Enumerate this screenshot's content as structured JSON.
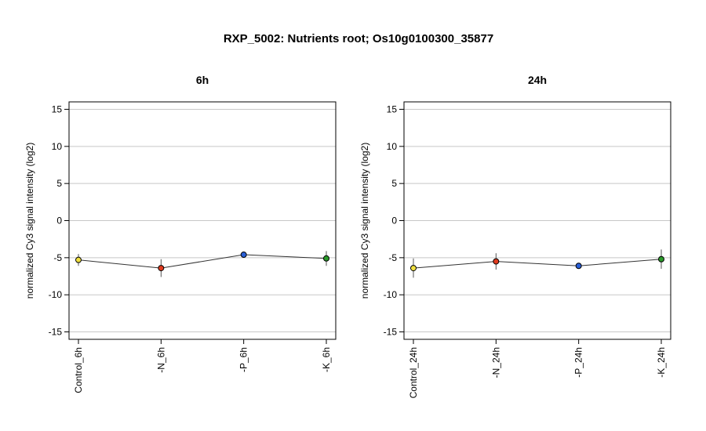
{
  "title": "RXP_5002: Nutrients root; Os10g0100300_35877",
  "chart_data": [
    {
      "type": "line",
      "title": "6h",
      "ylabel": "normalized Cy3 signal intensity (log2)",
      "ylim": [
        -16,
        16
      ],
      "yticks": [
        -15,
        -10,
        -5,
        0,
        5,
        10,
        15
      ],
      "grid": true,
      "categories": [
        "Control_6h",
        "-N_6h",
        "-P_6h",
        "-K_6h"
      ],
      "values": [
        -5.3,
        -6.4,
        -4.6,
        -5.1
      ],
      "error": [
        0.8,
        1.2,
        0.3,
        1.0
      ],
      "colors": [
        "#f0e040",
        "#e03a1e",
        "#2a5fd6",
        "#2a9a2a"
      ]
    },
    {
      "type": "line",
      "title": "24h",
      "ylabel": "normalized Cy3 signal intensity (log2)",
      "ylim": [
        -16,
        16
      ],
      "yticks": [
        -15,
        -10,
        -5,
        0,
        5,
        10,
        15
      ],
      "grid": true,
      "categories": [
        "Control_24h",
        "-N_24h",
        "-P_24h",
        "-K_24h"
      ],
      "values": [
        -6.4,
        -5.5,
        -6.1,
        -5.2
      ],
      "error": [
        1.3,
        1.1,
        0.2,
        1.3
      ],
      "colors": [
        "#f0e040",
        "#e03a1e",
        "#2a5fd6",
        "#2a9a2a"
      ]
    }
  ]
}
